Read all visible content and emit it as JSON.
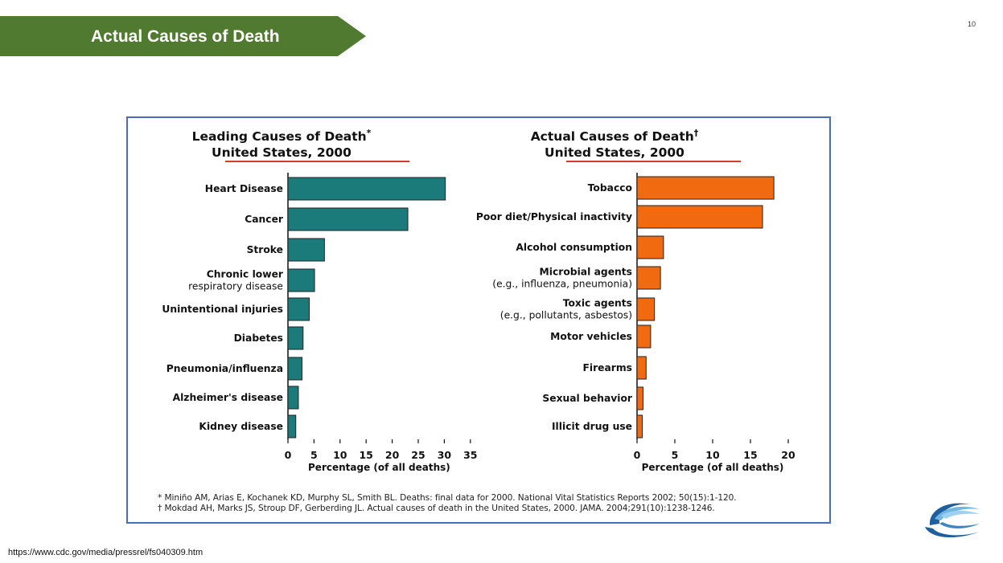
{
  "slide": {
    "title": "Actual Causes of Death",
    "page_number": "10",
    "source_url": "https://www.cdc.gov/media/pressrel/fs040309.htm",
    "accent_green": "#507a2f",
    "frame_color": "#4a6db5"
  },
  "chart_data": [
    {
      "type": "bar",
      "orientation": "horizontal",
      "title_line1": "Leading Causes of Death",
      "title_mark": "*",
      "title_line2": "United States, 2000",
      "categories": [
        [
          "Heart Disease"
        ],
        [
          "Cancer"
        ],
        [
          "Stroke"
        ],
        [
          "Chronic lower",
          "respiratory disease"
        ],
        [
          "Unintentional injuries"
        ],
        [
          "Diabetes"
        ],
        [
          "Pneumonia/influenza"
        ],
        [
          "Alzheimer's disease"
        ],
        [
          "Kidney disease"
        ]
      ],
      "values": [
        30.2,
        23,
        7,
        5.1,
        4.1,
        2.9,
        2.7,
        2.0,
        1.5
      ],
      "xlim": [
        0,
        35
      ],
      "ticks": [
        "0",
        "5",
        "10",
        "15",
        "20",
        "25",
        "30",
        "35"
      ],
      "xlabel": "Percentage (of all deaths)",
      "bar_color": "#1b7b7b"
    },
    {
      "type": "bar",
      "orientation": "horizontal",
      "title_line1": "Actual Causes of Death",
      "title_mark": "†",
      "title_line2": "United States, 2000",
      "categories": [
        [
          "Tobacco"
        ],
        [
          "Poor diet/Physical inactivity"
        ],
        [
          "Alcohol consumption"
        ],
        [
          "Microbial agents",
          "(e.g., influenza, pneumonia)"
        ],
        [
          "Toxic agents",
          "(e.g., pollutants, asbestos)"
        ],
        [
          "Motor vehicles"
        ],
        [
          "Firearms"
        ],
        [
          "Sexual behavior"
        ],
        [
          "Illicit drug use"
        ]
      ],
      "values": [
        18.1,
        16.6,
        3.5,
        3.1,
        2.3,
        1.8,
        1.2,
        0.8,
        0.7
      ],
      "xlim": [
        0,
        20
      ],
      "ticks": [
        "0",
        "5",
        "10",
        "15",
        "20"
      ],
      "xlabel": "Percentage (of all deaths)",
      "bar_color": "#f26a10"
    }
  ],
  "footnotes": [
    "* Miniño AM, Arias E, Kochanek KD, Murphy SL, Smith BL. Deaths: final data for 2000. National Vital Statistics Reports 2002; 50(15):1-120.",
    "† Mokdad AH, Marks JS, Stroup DF, Gerberding JL.  Actual causes of death in the United States, 2000.  JAMA. 2004;291(10):1238-1246."
  ]
}
